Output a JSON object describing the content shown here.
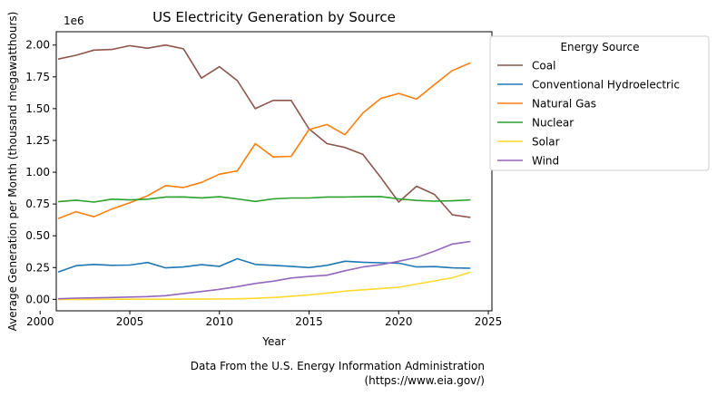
{
  "chart_data": {
    "type": "line",
    "title": "US Electricity Generation by Source",
    "xlabel": "Year",
    "ylabel": "Average Generation per Month (thousand megawatthours)",
    "y_offset_label": "1e6",
    "xlim": [
      2000.9,
      2025.2
    ],
    "ylim": [
      -90000,
      2105000
    ],
    "x_ticks": [
      2000,
      2005,
      2010,
      2015,
      2020,
      2025
    ],
    "y_ticks": [
      0,
      250000,
      500000,
      750000,
      1000000,
      1250000,
      1500000,
      1750000,
      2000000
    ],
    "y_tick_labels": [
      "0.00",
      "0.25",
      "0.50",
      "0.75",
      "1.00",
      "1.25",
      "1.50",
      "1.75",
      "2.00"
    ],
    "grid": false,
    "legend": {
      "title": "Energy Source",
      "placement": "outside-right-top"
    },
    "x": [
      2001,
      2002,
      2003,
      2004,
      2005,
      2006,
      2007,
      2008,
      2009,
      2010,
      2011,
      2012,
      2013,
      2014,
      2015,
      2016,
      2017,
      2018,
      2019,
      2020,
      2021,
      2022,
      2023,
      2024
    ],
    "series": [
      {
        "name": "Coal",
        "color": "#8c564b",
        "values": [
          1890000,
          1920000,
          1960000,
          1965000,
          1995000,
          1975000,
          2000000,
          1970000,
          1740000,
          1830000,
          1720000,
          1500000,
          1565000,
          1565000,
          1340000,
          1225000,
          1195000,
          1140000,
          960000,
          765000,
          890000,
          825000,
          665000,
          645000
        ]
      },
      {
        "name": "Conventional Hydroelectric",
        "color": "#1f77b4",
        "values": [
          215000,
          265000,
          275000,
          268000,
          270000,
          290000,
          248000,
          255000,
          273000,
          260000,
          320000,
          275000,
          268000,
          260000,
          250000,
          268000,
          300000,
          292000,
          288000,
          285000,
          255000,
          258000,
          248000,
          245000
        ]
      },
      {
        "name": "Natural Gas",
        "color": "#ff7f0e",
        "values": [
          635000,
          690000,
          650000,
          710000,
          760000,
          815000,
          895000,
          880000,
          920000,
          985000,
          1010000,
          1225000,
          1120000,
          1125000,
          1335000,
          1375000,
          1295000,
          1465000,
          1580000,
          1620000,
          1575000,
          1690000,
          1800000,
          1860000
        ]
      },
      {
        "name": "Nuclear",
        "color": "#2ca02c",
        "values": [
          768000,
          780000,
          765000,
          788000,
          782000,
          788000,
          805000,
          806000,
          798000,
          807000,
          790000,
          770000,
          790000,
          797000,
          797000,
          805000,
          805000,
          807000,
          809000,
          790000,
          778000,
          772000,
          775000,
          782000
        ]
      },
      {
        "name": "Solar",
        "color": "#ffd92f",
        "values": [
          0,
          0,
          0,
          1000,
          1000,
          1000,
          1000,
          2000,
          2000,
          3000,
          5000,
          8000,
          15000,
          25000,
          35000,
          50000,
          65000,
          75000,
          85000,
          95000,
          120000,
          145000,
          170000,
          215000
        ]
      },
      {
        "name": "Wind",
        "color": "#9467bd",
        "values": [
          5000,
          10000,
          12000,
          15000,
          18000,
          22000,
          29000,
          46000,
          62000,
          79000,
          100000,
          125000,
          143000,
          168000,
          180000,
          190000,
          225000,
          255000,
          273000,
          300000,
          330000,
          380000,
          435000,
          455000
        ]
      }
    ]
  },
  "footnote": {
    "line1": "Data From the U.S. Energy Information Administration",
    "line2": "(https://www.eia.gov/)"
  }
}
